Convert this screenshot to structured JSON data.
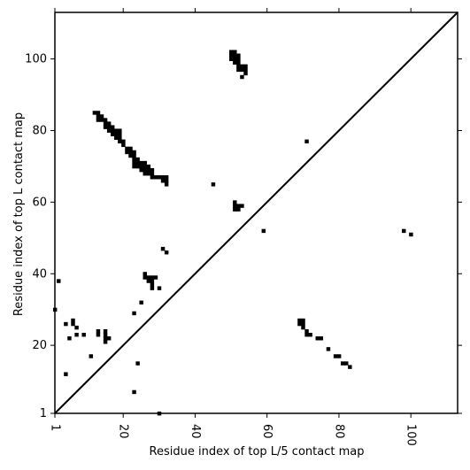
{
  "chart_data": {
    "type": "scatter",
    "title": "",
    "xlabel": "Residue index of top L/5 contact map",
    "ylabel": "Residue index of top L contact map",
    "xlim": [
      1,
      113
    ],
    "ylim": [
      1,
      113
    ],
    "xticks": [
      1,
      20,
      40,
      60,
      80,
      100
    ],
    "yticks": [
      1,
      20,
      40,
      60,
      80,
      100
    ],
    "x_tick_labels_rotated": true,
    "grid": false,
    "diagonal_line": true,
    "marker": "square",
    "color": "#000000",
    "upper_points": [
      [
        12,
        85
      ],
      [
        13,
        85
      ],
      [
        13,
        84
      ],
      [
        14,
        84
      ],
      [
        13,
        83
      ],
      [
        14,
        83
      ],
      [
        15,
        83
      ],
      [
        15,
        82
      ],
      [
        16,
        82
      ],
      [
        15,
        81
      ],
      [
        16,
        81
      ],
      [
        17,
        81
      ],
      [
        16,
        80
      ],
      [
        17,
        80
      ],
      [
        18,
        80
      ],
      [
        19,
        80
      ],
      [
        17,
        79
      ],
      [
        18,
        79
      ],
      [
        19,
        79
      ],
      [
        18,
        78
      ],
      [
        19,
        78
      ],
      [
        19,
        77
      ],
      [
        20,
        77
      ],
      [
        20,
        76
      ],
      [
        21,
        75
      ],
      [
        22,
        75
      ],
      [
        21,
        74
      ],
      [
        22,
        74
      ],
      [
        23,
        74
      ],
      [
        22,
        73
      ],
      [
        23,
        73
      ],
      [
        23,
        72
      ],
      [
        24,
        72
      ],
      [
        23,
        71
      ],
      [
        24,
        71
      ],
      [
        25,
        71
      ],
      [
        26,
        71
      ],
      [
        23,
        70
      ],
      [
        24,
        70
      ],
      [
        25,
        70
      ],
      [
        26,
        70
      ],
      [
        27,
        70
      ],
      [
        25,
        69
      ],
      [
        26,
        69
      ],
      [
        27,
        69
      ],
      [
        28,
        69
      ],
      [
        26,
        68
      ],
      [
        27,
        68
      ],
      [
        28,
        68
      ],
      [
        28,
        67
      ],
      [
        29,
        67
      ],
      [
        30,
        67
      ],
      [
        31,
        67
      ],
      [
        32,
        67
      ],
      [
        31,
        66
      ],
      [
        32,
        66
      ],
      [
        32,
        65
      ],
      [
        45,
        65
      ],
      [
        50,
        102
      ],
      [
        51,
        102
      ],
      [
        50,
        101
      ],
      [
        51,
        101
      ],
      [
        52,
        101
      ],
      [
        50,
        100
      ],
      [
        51,
        100
      ],
      [
        52,
        100
      ],
      [
        51,
        99
      ],
      [
        52,
        99
      ],
      [
        52,
        98
      ],
      [
        53,
        98
      ],
      [
        54,
        98
      ],
      [
        52,
        97
      ],
      [
        53,
        97
      ],
      [
        54,
        97
      ],
      [
        54,
        96
      ],
      [
        53,
        95
      ],
      [
        51,
        60
      ],
      [
        51,
        59
      ],
      [
        52,
        59
      ],
      [
        53,
        59
      ],
      [
        51,
        58
      ],
      [
        52,
        58
      ],
      [
        59,
        52
      ],
      [
        71,
        77
      ],
      [
        98,
        52
      ],
      [
        100,
        51
      ]
    ],
    "lower_points": [
      [
        2,
        38
      ],
      [
        1,
        30
      ],
      [
        4,
        26
      ],
      [
        6,
        27
      ],
      [
        6,
        26
      ],
      [
        7,
        25
      ],
      [
        5,
        22
      ],
      [
        7,
        23
      ],
      [
        9,
        23
      ],
      [
        13,
        24
      ],
      [
        13,
        23
      ],
      [
        15,
        24
      ],
      [
        15,
        23
      ],
      [
        15,
        22
      ],
      [
        16,
        22
      ],
      [
        15,
        21
      ],
      [
        11,
        17
      ],
      [
        4,
        12
      ],
      [
        24,
        15
      ],
      [
        23,
        7
      ],
      [
        30,
        1
      ],
      [
        23,
        29
      ],
      [
        25,
        32
      ],
      [
        26,
        40
      ],
      [
        26,
        39
      ],
      [
        27,
        39
      ],
      [
        28,
        39
      ],
      [
        29,
        39
      ],
      [
        27,
        38
      ],
      [
        28,
        38
      ],
      [
        28,
        37
      ],
      [
        28,
        36
      ],
      [
        30,
        36
      ],
      [
        31,
        47
      ],
      [
        32,
        46
      ],
      [
        69,
        27
      ],
      [
        70,
        27
      ],
      [
        69,
        26
      ],
      [
        70,
        26
      ],
      [
        70,
        25
      ],
      [
        71,
        24
      ],
      [
        71,
        23
      ],
      [
        72,
        23
      ],
      [
        74,
        22
      ],
      [
        75,
        22
      ],
      [
        77,
        19
      ],
      [
        79,
        17
      ],
      [
        80,
        17
      ],
      [
        81,
        15
      ],
      [
        82,
        15
      ],
      [
        83,
        14
      ]
    ]
  }
}
